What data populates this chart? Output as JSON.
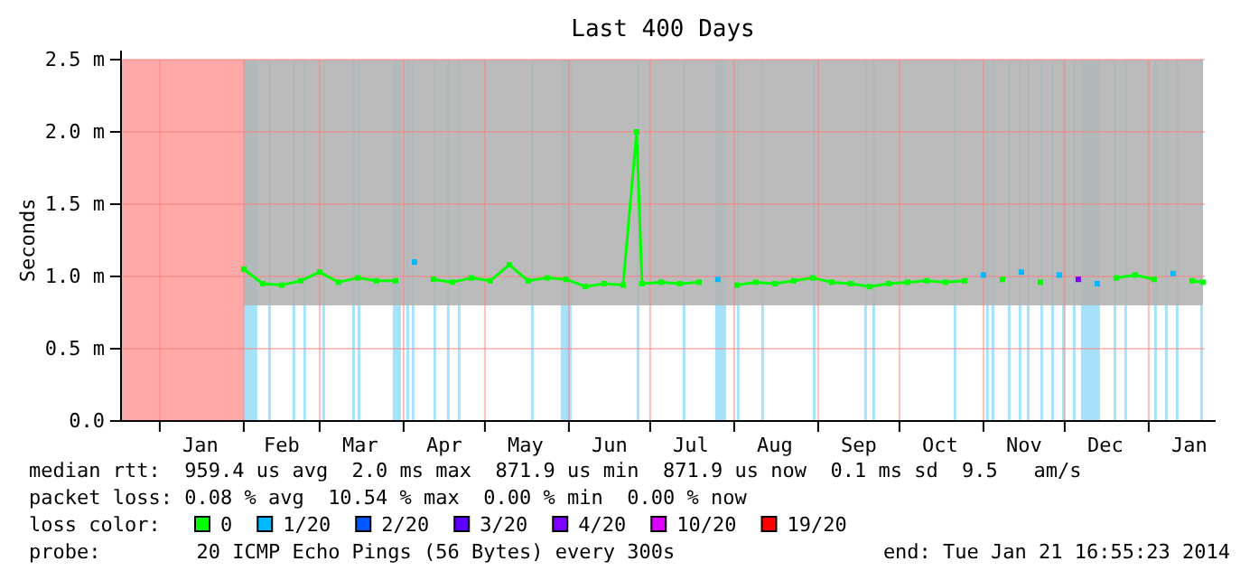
{
  "chart_data": {
    "type": "line",
    "title": "Last 400 Days",
    "ylabel": "Seconds",
    "legend_title": "loss color:",
    "legend": "bottom",
    "grid": true,
    "xlim": [
      "2012-12-17T16:55",
      "2014-01-21T16:55"
    ],
    "xticks": [
      {
        "value": "2013-01-01",
        "label": null
      },
      {
        "value": "2013-01-16",
        "label": "Jan"
      },
      {
        "value": "2013-02-01",
        "label": null
      },
      {
        "value": "2013-02-15",
        "label": "Feb"
      },
      {
        "value": "2013-03-01",
        "label": null
      },
      {
        "value": "2013-03-16",
        "label": "Mar"
      },
      {
        "value": "2013-04-01",
        "label": null
      },
      {
        "value": "2013-04-16",
        "label": "Apr"
      },
      {
        "value": "2013-05-01",
        "label": null
      },
      {
        "value": "2013-05-16",
        "label": "May"
      },
      {
        "value": "2013-06-01",
        "label": null
      },
      {
        "value": "2013-06-16",
        "label": "Jun"
      },
      {
        "value": "2013-07-01",
        "label": null
      },
      {
        "value": "2013-07-16",
        "label": "Jul"
      },
      {
        "value": "2013-08-01",
        "label": null
      },
      {
        "value": "2013-08-16",
        "label": "Aug"
      },
      {
        "value": "2013-09-01",
        "label": null
      },
      {
        "value": "2013-09-16",
        "label": "Sep"
      },
      {
        "value": "2013-10-01",
        "label": null
      },
      {
        "value": "2013-10-16",
        "label": "Oct"
      },
      {
        "value": "2013-11-01",
        "label": null
      },
      {
        "value": "2013-11-16",
        "label": "Nov"
      },
      {
        "value": "2013-12-01",
        "label": null
      },
      {
        "value": "2013-12-16",
        "label": "Dec"
      },
      {
        "value": "2014-01-01",
        "label": null
      },
      {
        "value": "2014-01-16",
        "label": "Jan"
      }
    ],
    "ylim": [
      0,
      2.5
    ],
    "yticks": [
      {
        "value": 0,
        "label": "0.0"
      },
      {
        "value": 0.5,
        "label": "0.5 m"
      },
      {
        "value": 1,
        "label": "1.0 m"
      },
      {
        "value": 1.5,
        "label": "1.5 m"
      },
      {
        "value": 2,
        "label": "2.0 m"
      },
      {
        "value": 2.5,
        "label": "2.5 m"
      }
    ],
    "x": [
      "2013-02-01",
      "2013-02-08",
      "2013-02-15",
      "2013-02-22",
      "2013-03-01",
      "2013-03-08",
      "2013-03-15",
      "2013-03-22",
      "2013-03-29",
      "2013-04-05",
      "2013-04-12",
      "2013-04-19",
      "2013-04-26",
      "2013-05-03",
      "2013-05-10",
      "2013-05-17",
      "2013-05-24",
      "2013-05-31",
      "2013-06-07",
      "2013-06-14",
      "2013-06-21",
      "2013-06-26",
      "2013-06-28",
      "2013-07-05",
      "2013-07-12",
      "2013-07-19",
      "2013-07-26",
      "2013-08-02",
      "2013-08-09",
      "2013-08-16",
      "2013-08-23",
      "2013-08-30",
      "2013-09-06",
      "2013-09-13",
      "2013-09-20",
      "2013-09-27",
      "2013-10-04",
      "2013-10-11",
      "2013-10-18",
      "2013-10-25",
      "2013-11-01",
      "2013-11-08",
      "2013-11-15",
      "2013-11-22",
      "2013-11-29",
      "2013-12-06",
      "2013-12-13",
      "2013-12-20",
      "2013-12-27",
      "2014-01-03",
      "2014-01-10",
      "2014-01-17",
      "2014-01-21"
    ],
    "marker": "square",
    "series": [
      {
        "name": "0",
        "color": "#00ff00",
        "values": [
          1.05,
          0.95,
          0.94,
          0.97,
          1.03,
          0.96,
          0.99,
          0.97,
          0.97,
          null,
          0.98,
          0.96,
          0.99,
          0.97,
          1.08,
          0.97,
          0.99,
          0.98,
          0.93,
          0.95,
          0.94,
          2.0,
          0.95,
          0.96,
          0.95,
          0.96,
          null,
          0.94,
          0.96,
          0.95,
          0.97,
          0.99,
          0.96,
          0.95,
          0.93,
          0.95,
          0.96,
          0.97,
          0.96,
          0.97,
          null,
          0.98,
          null,
          0.96,
          null,
          null,
          null,
          0.99,
          1.01,
          0.98,
          null,
          0.97,
          0.96
        ],
        "lower": [
          0.8,
          0.8,
          0.8,
          0.8,
          0.8,
          0.8,
          0.8,
          0.8,
          0.8,
          0.8,
          0.8,
          0.8,
          0.8,
          0.8,
          0.8,
          0.8,
          0.8,
          0.8,
          0.8,
          0.8,
          0.8,
          0.8,
          0.8,
          0.8,
          0.8,
          0.8,
          0.8,
          0.8,
          0.8,
          0.8,
          0.8,
          0.8,
          0.8,
          0.8,
          0.8,
          0.8,
          0.8,
          0.8,
          0.8,
          0.8,
          0.8,
          0.8,
          0.8,
          0.8,
          0.8,
          0.8,
          0.8,
          0.8,
          0.8,
          0.8,
          0.8,
          0.8,
          0.8
        ],
        "upper": [
          2.5,
          2.5,
          2.5,
          2.5,
          2.5,
          2.5,
          2.5,
          2.5,
          2.5,
          2.5,
          2.5,
          2.5,
          2.5,
          2.5,
          2.5,
          2.5,
          2.5,
          2.5,
          2.5,
          2.5,
          2.5,
          2.5,
          2.5,
          2.5,
          2.5,
          2.5,
          2.5,
          2.5,
          2.5,
          2.5,
          2.5,
          2.5,
          2.5,
          2.5,
          2.5,
          2.5,
          2.5,
          2.5,
          2.5,
          2.5,
          2.5,
          2.5,
          2.5,
          2.5,
          2.5,
          2.5,
          2.5,
          2.5,
          2.5,
          2.5,
          2.5,
          2.5,
          2.5
        ]
      },
      {
        "name": "1/20",
        "type": "scatter",
        "color": "#00b8ff",
        "values": [
          null,
          null,
          null,
          null,
          null,
          null,
          null,
          null,
          null,
          1.1,
          null,
          null,
          null,
          null,
          null,
          null,
          null,
          null,
          null,
          null,
          null,
          null,
          null,
          null,
          null,
          null,
          0.98,
          null,
          null,
          null,
          null,
          null,
          null,
          null,
          null,
          null,
          null,
          null,
          null,
          null,
          1.01,
          null,
          1.03,
          null,
          1.01,
          null,
          0.95,
          null,
          null,
          null,
          1.02,
          null,
          null
        ]
      },
      {
        "name": "2/20",
        "type": "scatter",
        "color": "#0059ff",
        "values": [
          null,
          null,
          null,
          null,
          null,
          null,
          null,
          null,
          null,
          null,
          null,
          null,
          null,
          null,
          null,
          null,
          null,
          null,
          null,
          null,
          null,
          null,
          null,
          null,
          null,
          null,
          null,
          null,
          null,
          null,
          null,
          null,
          null,
          null,
          null,
          null,
          null,
          null,
          null,
          null,
          null,
          null,
          null,
          null,
          null,
          null,
          null,
          null,
          null,
          null,
          null,
          null,
          null
        ]
      },
      {
        "name": "3/20",
        "type": "scatter",
        "color": "#5e00ff",
        "values": [
          null,
          null,
          null,
          null,
          null,
          null,
          null,
          null,
          null,
          null,
          null,
          null,
          null,
          null,
          null,
          null,
          null,
          null,
          null,
          null,
          null,
          null,
          null,
          null,
          null,
          null,
          null,
          null,
          null,
          null,
          null,
          null,
          null,
          null,
          null,
          null,
          null,
          null,
          null,
          null,
          null,
          null,
          null,
          null,
          null,
          null,
          null,
          null,
          null,
          null,
          null,
          null,
          null
        ]
      },
      {
        "name": "4/20",
        "type": "scatter",
        "color": "#7e00ff",
        "values": [
          null,
          null,
          null,
          null,
          null,
          null,
          null,
          null,
          null,
          null,
          null,
          null,
          null,
          null,
          null,
          null,
          null,
          null,
          null,
          null,
          null,
          null,
          null,
          null,
          null,
          null,
          null,
          null,
          null,
          null,
          null,
          null,
          null,
          null,
          null,
          null,
          null,
          null,
          null,
          null,
          null,
          null,
          null,
          null,
          null,
          0.98,
          null,
          null,
          null,
          null,
          null,
          null,
          null
        ]
      },
      {
        "name": "10/20",
        "type": "scatter",
        "color": "#dd00ff",
        "values": [
          null,
          null,
          null,
          null,
          null,
          null,
          null,
          null,
          null,
          null,
          null,
          null,
          null,
          null,
          null,
          null,
          null,
          null,
          null,
          null,
          null,
          null,
          null,
          null,
          null,
          null,
          null,
          null,
          null,
          null,
          null,
          null,
          null,
          null,
          null,
          null,
          null,
          null,
          null,
          null,
          null,
          null,
          null,
          null,
          null,
          null,
          null,
          null,
          null,
          null,
          null,
          null,
          null
        ]
      },
      {
        "name": "19/20",
        "type": "scatter",
        "color": "#ff0000",
        "values": [
          null,
          null,
          null,
          null,
          null,
          null,
          null,
          null,
          null,
          null,
          null,
          null,
          null,
          null,
          null,
          null,
          null,
          null,
          null,
          null,
          null,
          null,
          null,
          null,
          null,
          null,
          null,
          null,
          null,
          null,
          null,
          null,
          null,
          null,
          null,
          null,
          null,
          null,
          null,
          null,
          null,
          null,
          null,
          null,
          null,
          null,
          null,
          null,
          null,
          null,
          null,
          null,
          null
        ]
      }
    ],
    "bands": [
      {
        "axis": "x",
        "from": "2012-12-17T16:55",
        "to": "2013-02-01",
        "color": "#ffa8a8"
      },
      {
        "axis": "x",
        "from": "2013-02-01",
        "to": "2013-02-06",
        "color": "#a6e3fb"
      },
      {
        "axis": "x",
        "from": "2013-02-10",
        "to": "2013-02-11",
        "color": "#a6e3fb"
      },
      {
        "axis": "x",
        "from": "2013-02-19",
        "to": "2013-02-20",
        "color": "#a6e3fb"
      },
      {
        "axis": "x",
        "from": "2013-02-23",
        "to": "2013-02-24",
        "color": "#a6e3fb"
      },
      {
        "axis": "x",
        "from": "2013-03-02",
        "to": "2013-03-03",
        "color": "#a6e3fb"
      },
      {
        "axis": "x",
        "from": "2013-03-13",
        "to": "2013-03-14",
        "color": "#a6e3fb"
      },
      {
        "axis": "x",
        "from": "2013-03-15",
        "to": "2013-03-16",
        "color": "#a6e3fb"
      },
      {
        "axis": "x",
        "from": "2013-03-28",
        "to": "2013-03-31",
        "color": "#a6e3fb"
      },
      {
        "axis": "x",
        "from": "2013-04-02",
        "to": "2013-04-03",
        "color": "#a6e3fb"
      },
      {
        "axis": "x",
        "from": "2013-04-04",
        "to": "2013-04-05",
        "color": "#a6e3fb"
      },
      {
        "axis": "x",
        "from": "2013-04-12",
        "to": "2013-04-13",
        "color": "#a6e3fb"
      },
      {
        "axis": "x",
        "from": "2013-04-17",
        "to": "2013-04-18",
        "color": "#a6e3fb"
      },
      {
        "axis": "x",
        "from": "2013-04-21",
        "to": "2013-04-22",
        "color": "#a6e3fb"
      },
      {
        "axis": "x",
        "from": "2013-05-18",
        "to": "2013-05-19",
        "color": "#a6e3fb"
      },
      {
        "axis": "x",
        "from": "2013-05-29",
        "to": "2013-06-02",
        "color": "#a6e3fb"
      },
      {
        "axis": "x",
        "from": "2013-06-26",
        "to": "2013-06-27",
        "color": "#a6e3fb"
      },
      {
        "axis": "x",
        "from": "2013-07-13",
        "to": "2013-07-14",
        "color": "#a6e3fb"
      },
      {
        "axis": "x",
        "from": "2013-07-25",
        "to": "2013-07-29",
        "color": "#a6e3fb"
      },
      {
        "axis": "x",
        "from": "2013-08-02",
        "to": "2013-08-03",
        "color": "#a6e3fb"
      },
      {
        "axis": "x",
        "from": "2013-08-11",
        "to": "2013-08-12",
        "color": "#a6e3fb"
      },
      {
        "axis": "x",
        "from": "2013-08-30",
        "to": "2013-08-31",
        "color": "#a6e3fb"
      },
      {
        "axis": "x",
        "from": "2013-09-18",
        "to": "2013-09-19",
        "color": "#a6e3fb"
      },
      {
        "axis": "x",
        "from": "2013-09-21",
        "to": "2013-09-22",
        "color": "#a6e3fb"
      },
      {
        "axis": "x",
        "from": "2013-10-21",
        "to": "2013-10-22",
        "color": "#a6e3fb"
      },
      {
        "axis": "x",
        "from": "2013-11-02",
        "to": "2013-11-03",
        "color": "#a6e3fb"
      },
      {
        "axis": "x",
        "from": "2013-11-04",
        "to": "2013-11-05",
        "color": "#a6e3fb"
      },
      {
        "axis": "x",
        "from": "2013-11-10",
        "to": "2013-11-11",
        "color": "#a6e3fb"
      },
      {
        "axis": "x",
        "from": "2013-11-14",
        "to": "2013-11-15",
        "color": "#a6e3fb"
      },
      {
        "axis": "x",
        "from": "2013-11-17",
        "to": "2013-11-18",
        "color": "#a6e3fb"
      },
      {
        "axis": "x",
        "from": "2013-11-22",
        "to": "2013-11-23",
        "color": "#a6e3fb"
      },
      {
        "axis": "x",
        "from": "2013-11-26",
        "to": "2013-11-27",
        "color": "#a6e3fb"
      },
      {
        "axis": "x",
        "from": "2013-11-30",
        "to": "2013-12-01",
        "color": "#a6e3fb"
      },
      {
        "axis": "x",
        "from": "2013-12-04",
        "to": "2013-12-05",
        "color": "#a6e3fb"
      },
      {
        "axis": "x",
        "from": "2013-12-07",
        "to": "2013-12-14",
        "color": "#a6e3fb"
      },
      {
        "axis": "x",
        "from": "2013-12-19",
        "to": "2013-12-20",
        "color": "#a6e3fb"
      },
      {
        "axis": "x",
        "from": "2013-12-23",
        "to": "2013-12-24",
        "color": "#a6e3fb"
      },
      {
        "axis": "x",
        "from": "2014-01-03",
        "to": "2014-01-04",
        "color": "#a6e3fb"
      },
      {
        "axis": "x",
        "from": "2014-01-07",
        "to": "2014-01-08",
        "color": "#a6e3fb"
      },
      {
        "axis": "x",
        "from": "2014-01-11",
        "to": "2014-01-12",
        "color": "#a6e3fb"
      },
      {
        "axis": "x",
        "from": "2014-01-20",
        "to": "2014-01-21",
        "color": "#a6e3fb"
      }
    ],
    "annotations": [
      "median rtt:  959.4 us avg  2.0 ms max  871.9 us min  871.9 us now  0.1 ms sd  9.5   am/s",
      "packet loss: 0.08 % avg  10.54 % max  0.00 % min  0.00 % now",
      "probe:        20 ICMP Echo Pings (56 Bytes) every 300s",
      "end: Tue Jan 21 16:55:23 2014"
    ]
  }
}
